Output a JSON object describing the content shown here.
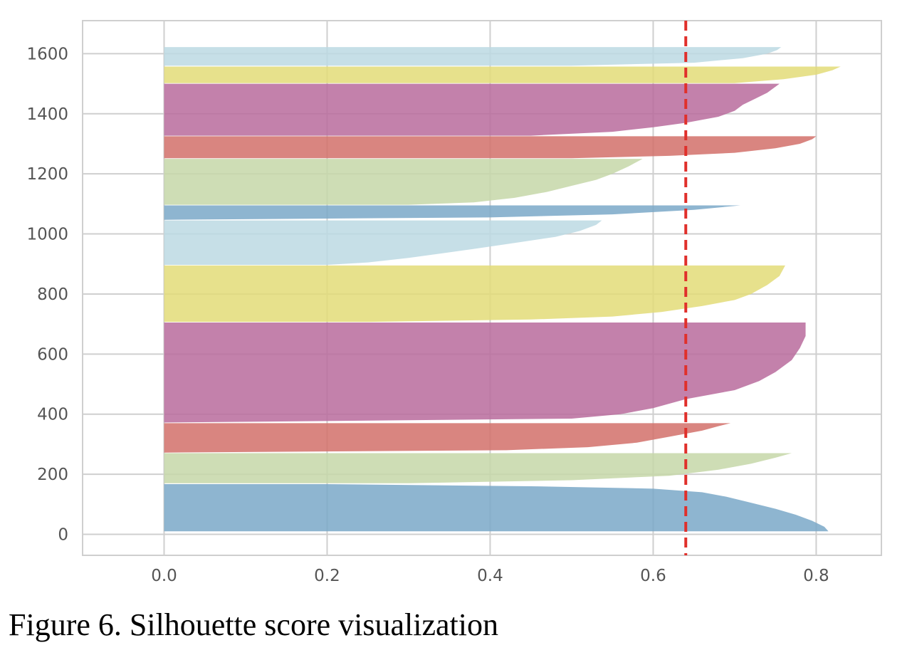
{
  "figure": {
    "caption": "Figure 6. Silhouette score visualization"
  },
  "chart_data": {
    "type": "area",
    "title": "",
    "xlabel": "",
    "ylabel": "",
    "xlim": [
      -0.1,
      0.88
    ],
    "ylim": [
      -70,
      1710
    ],
    "x_ticks": [
      0.0,
      0.2,
      0.4,
      0.6,
      0.8
    ],
    "x_tick_labels": [
      "0.0",
      "0.2",
      "0.4",
      "0.6",
      "0.8"
    ],
    "y_ticks": [
      0,
      200,
      400,
      600,
      800,
      1000,
      1200,
      1400,
      1600
    ],
    "y_tick_labels": [
      "0",
      "200",
      "400",
      "600",
      "800",
      "1000",
      "1200",
      "1400",
      "1600"
    ],
    "grid": true,
    "average_silhouette_score": 0.64,
    "average_line_color": "#e0302b",
    "clusters": [
      {
        "y_lower": 10,
        "y_upper": 167,
        "max_score": 0.815,
        "color": "#7aa8c8",
        "profile": [
          [
            10,
            0.815
          ],
          [
            25,
            0.81
          ],
          [
            45,
            0.795
          ],
          [
            65,
            0.775
          ],
          [
            85,
            0.75
          ],
          [
            105,
            0.72
          ],
          [
            125,
            0.69
          ],
          [
            140,
            0.66
          ],
          [
            152,
            0.6
          ],
          [
            160,
            0.45
          ],
          [
            167,
            0.2
          ]
        ]
      },
      {
        "y_lower": 170,
        "y_upper": 270,
        "max_score": 0.77,
        "color": "#c5d7a8",
        "profile": [
          [
            170,
            0.3
          ],
          [
            180,
            0.5
          ],
          [
            195,
            0.62
          ],
          [
            215,
            0.68
          ],
          [
            235,
            0.72
          ],
          [
            255,
            0.75
          ],
          [
            270,
            0.77
          ]
        ]
      },
      {
        "y_lower": 272,
        "y_upper": 370,
        "max_score": 0.695,
        "color": "#d2706a",
        "profile": [
          [
            272,
            0.0
          ],
          [
            280,
            0.42
          ],
          [
            290,
            0.52
          ],
          [
            305,
            0.58
          ],
          [
            325,
            0.62
          ],
          [
            345,
            0.66
          ],
          [
            360,
            0.68
          ],
          [
            370,
            0.695
          ]
        ]
      },
      {
        "y_lower": 372,
        "y_upper": 705,
        "max_score": 0.787,
        "color": "#b96b9c",
        "profile": [
          [
            372,
            0.0
          ],
          [
            385,
            0.5
          ],
          [
            400,
            0.56
          ],
          [
            420,
            0.6
          ],
          [
            450,
            0.64
          ],
          [
            480,
            0.7
          ],
          [
            510,
            0.73
          ],
          [
            540,
            0.75
          ],
          [
            580,
            0.77
          ],
          [
            620,
            0.78
          ],
          [
            660,
            0.787
          ],
          [
            705,
            0.787
          ]
        ]
      },
      {
        "y_lower": 707,
        "y_upper": 895,
        "max_score": 0.762,
        "color": "#e3dc78",
        "profile": [
          [
            707,
            0.25
          ],
          [
            715,
            0.45
          ],
          [
            725,
            0.55
          ],
          [
            740,
            0.61
          ],
          [
            760,
            0.66
          ],
          [
            780,
            0.7
          ],
          [
            800,
            0.72
          ],
          [
            830,
            0.74
          ],
          [
            860,
            0.755
          ],
          [
            895,
            0.762
          ]
        ]
      },
      {
        "y_lower": 897,
        "y_upper": 1045,
        "max_score": 0.537,
        "color": "#bcd9e3",
        "profile": [
          [
            897,
            0.2
          ],
          [
            905,
            0.25
          ],
          [
            920,
            0.3
          ],
          [
            935,
            0.34
          ],
          [
            950,
            0.38
          ],
          [
            970,
            0.43
          ],
          [
            990,
            0.48
          ],
          [
            1010,
            0.51
          ],
          [
            1030,
            0.53
          ],
          [
            1045,
            0.537
          ]
        ]
      },
      {
        "y_lower": 1047,
        "y_upper": 1095,
        "max_score": 0.707,
        "color": "#7aa8c8",
        "profile": [
          [
            1047,
            0.0
          ],
          [
            1055,
            0.4
          ],
          [
            1065,
            0.55
          ],
          [
            1080,
            0.65
          ],
          [
            1095,
            0.707
          ]
        ]
      },
      {
        "y_lower": 1097,
        "y_upper": 1250,
        "max_score": 0.587,
        "color": "#c5d7a8",
        "profile": [
          [
            1097,
            0.3
          ],
          [
            1105,
            0.38
          ],
          [
            1120,
            0.43
          ],
          [
            1140,
            0.47
          ],
          [
            1160,
            0.5
          ],
          [
            1180,
            0.53
          ],
          [
            1200,
            0.55
          ],
          [
            1225,
            0.57
          ],
          [
            1250,
            0.587
          ]
        ]
      },
      {
        "y_lower": 1252,
        "y_upper": 1325,
        "max_score": 0.8,
        "color": "#d2706a",
        "profile": [
          [
            1252,
            0.5
          ],
          [
            1260,
            0.62
          ],
          [
            1270,
            0.7
          ],
          [
            1285,
            0.75
          ],
          [
            1300,
            0.78
          ],
          [
            1315,
            0.795
          ],
          [
            1325,
            0.8
          ]
        ]
      },
      {
        "y_lower": 1327,
        "y_upper": 1500,
        "max_score": 0.755,
        "color": "#b96b9c",
        "profile": [
          [
            1327,
            0.45
          ],
          [
            1340,
            0.55
          ],
          [
            1355,
            0.6
          ],
          [
            1370,
            0.64
          ],
          [
            1390,
            0.68
          ],
          [
            1410,
            0.7
          ],
          [
            1430,
            0.71
          ],
          [
            1450,
            0.725
          ],
          [
            1470,
            0.74
          ],
          [
            1500,
            0.755
          ]
        ]
      },
      {
        "y_lower": 1502,
        "y_upper": 1557,
        "max_score": 0.83,
        "color": "#e3dc78",
        "profile": [
          [
            1502,
            0.7
          ],
          [
            1515,
            0.76
          ],
          [
            1530,
            0.8
          ],
          [
            1545,
            0.82
          ],
          [
            1557,
            0.83
          ]
        ]
      },
      {
        "y_lower": 1560,
        "y_upper": 1622,
        "max_score": 0.757,
        "color": "#bcd9e3",
        "profile": [
          [
            1560,
            0.5
          ],
          [
            1570,
            0.65
          ],
          [
            1585,
            0.71
          ],
          [
            1600,
            0.74
          ],
          [
            1612,
            0.752
          ],
          [
            1622,
            0.757
          ]
        ]
      }
    ]
  }
}
